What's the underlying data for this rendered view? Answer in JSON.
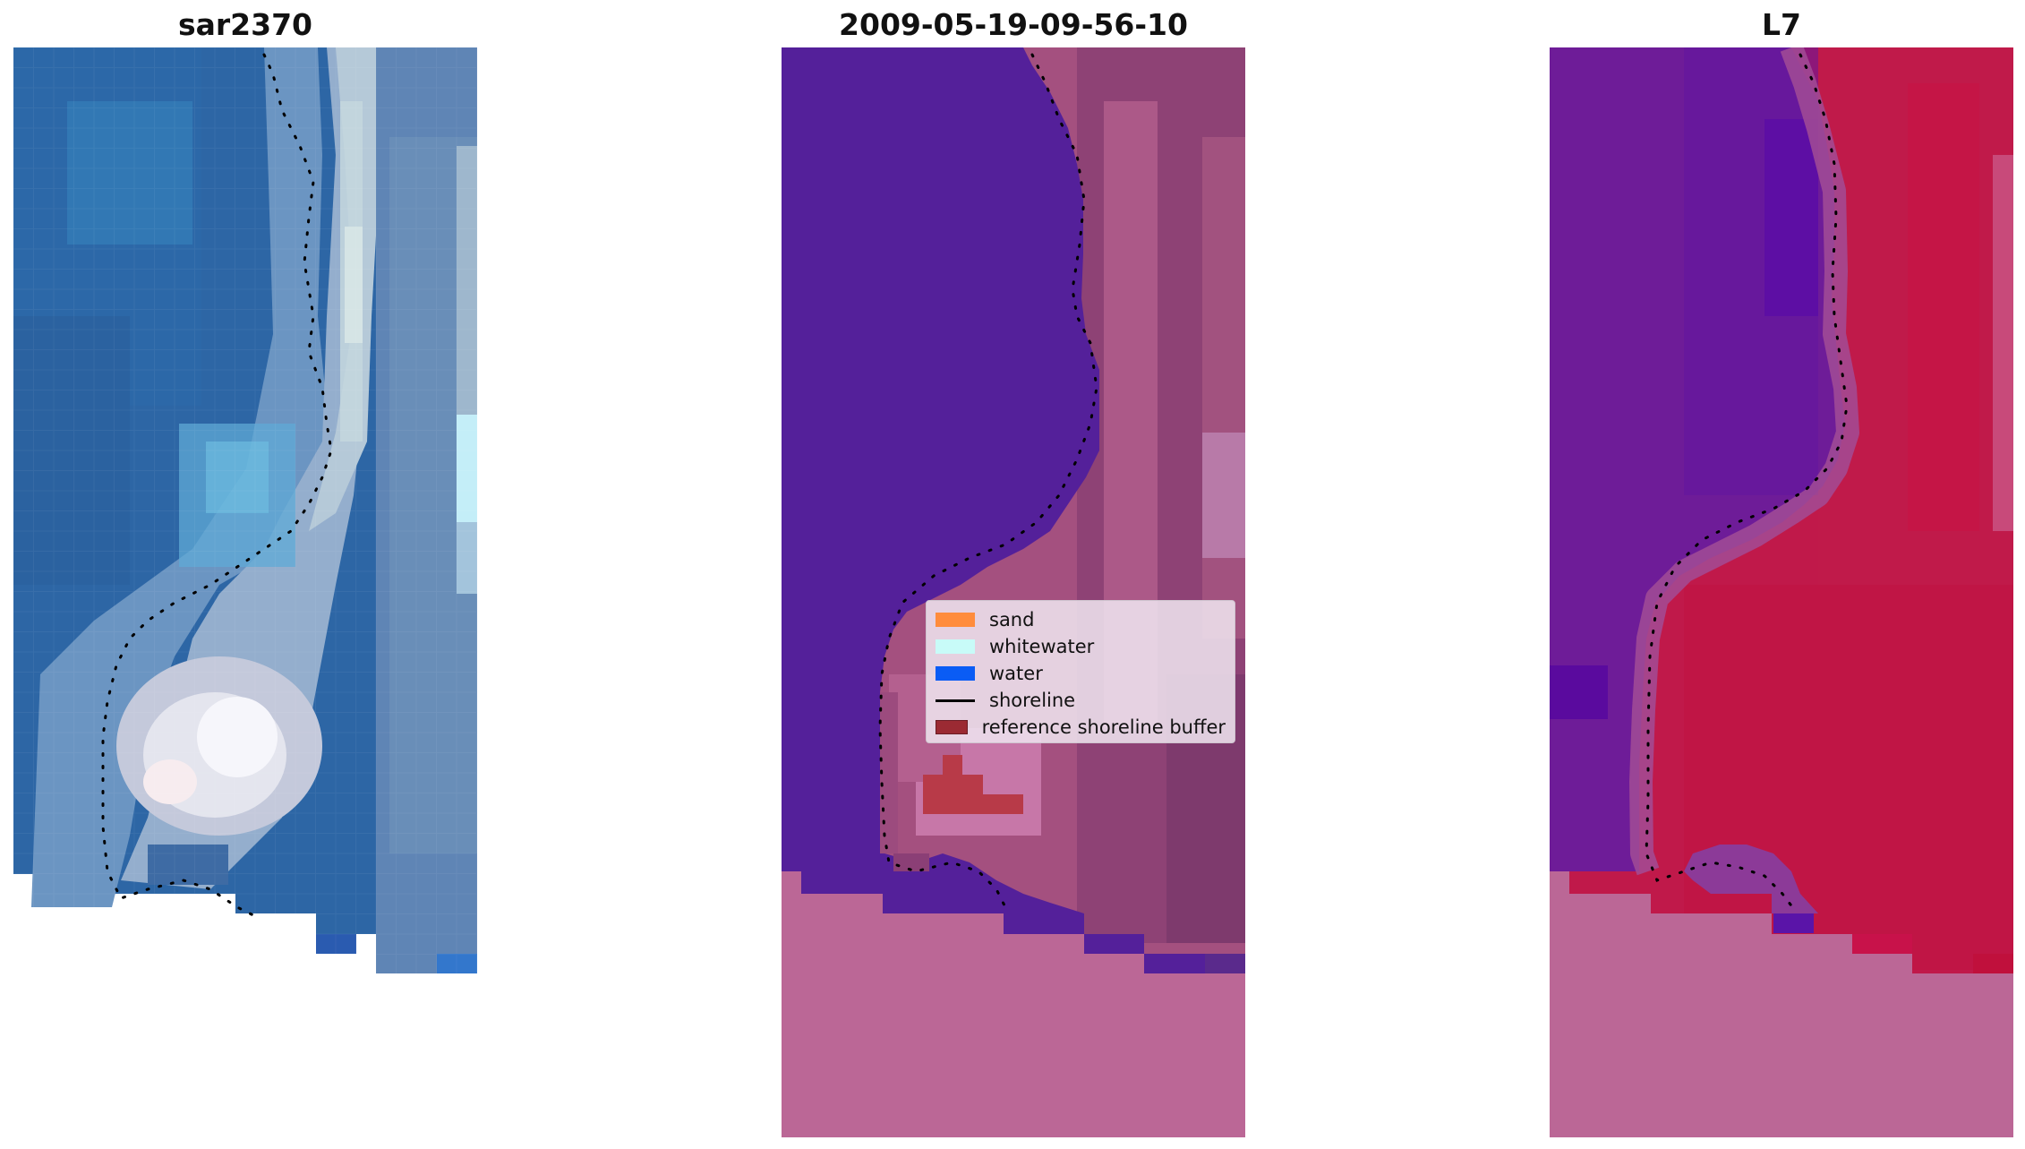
{
  "panels": [
    {
      "title": "sar2370"
    },
    {
      "title": "2009-05-19-09-56-10"
    },
    {
      "title": "L7"
    }
  ],
  "legend": {
    "items": [
      {
        "label": "sand",
        "color": "#ff8c3c"
      },
      {
        "label": "whitewater",
        "color": "#c8fbf8"
      },
      {
        "label": "water",
        "color": "#0a5cf5"
      },
      {
        "label": "shoreline",
        "color": "#000000"
      },
      {
        "label": "reference shoreline buffer",
        "color": "#9b2a33"
      }
    ]
  },
  "colors": {
    "water_class": "#54209a",
    "buffer_fill": "#bd6496",
    "nodata_fill": "#bb6796",
    "reference_shoreline_buffer": "#b83a48",
    "ndwi_water": "#6a1a9a",
    "ndwi_land": "#c0194a"
  }
}
